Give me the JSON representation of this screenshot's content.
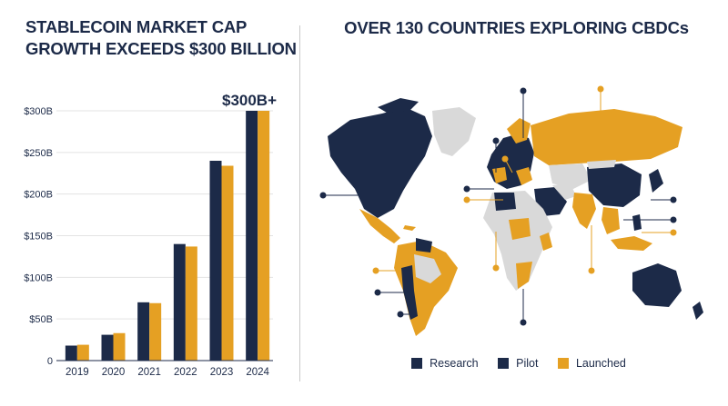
{
  "left_panel": {
    "title_line1": "STABLECOIN MARKET CAP",
    "title_line2": "GROWTH EXCEEDS $300 BILLION",
    "callout": "$300B+"
  },
  "right_panel": {
    "title": "OVER 130 COUNTRIES EXPLORING CBDCs"
  },
  "legend": [
    {
      "label": "Research",
      "color": "#1c2a48"
    },
    {
      "label": "Pilot",
      "color": "#1c2a48"
    },
    {
      "label": "Launched",
      "color": "#e5a023"
    }
  ],
  "colors": {
    "navy": "#1c2a48",
    "gold": "#e5a023",
    "land_gray": "#d9d9d9",
    "grid": "#e3e3e3"
  },
  "chart_data": {
    "type": "bar",
    "categories": [
      "2019",
      "2020",
      "2021",
      "2022",
      "2023",
      "2024"
    ],
    "series": [
      {
        "values": [
          18,
          31,
          70,
          140,
          240,
          300
        ]
      },
      {
        "values": [
          19,
          33,
          69,
          137,
          234,
          300
        ]
      }
    ],
    "yticks": [
      "0",
      "$50B",
      "$100B",
      "$150B",
      "$200B",
      "$250B",
      "$300B"
    ],
    "ylim": [
      0,
      300
    ],
    "grid": true
  }
}
